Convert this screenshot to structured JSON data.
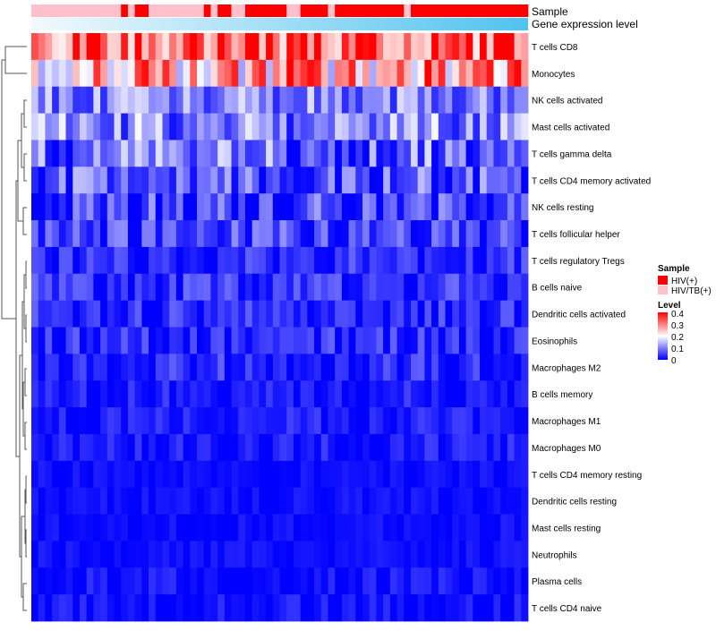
{
  "chart_data": {
    "type": "heatmap",
    "title": "",
    "annotation_labels": {
      "sample": "Sample",
      "expression": "Gene expression level"
    },
    "sample_groups": [
      "HIV/TB(+)",
      "HIV/TB(+)",
      "HIV/TB(+)",
      "HIV/TB(+)",
      "HIV/TB(+)",
      "HIV/TB(+)",
      "HIV/TB(+)",
      "HIV/TB(+)",
      "HIV/TB(+)",
      "HIV/TB(+)",
      "HIV/TB(+)",
      "HIV/TB(+)",
      "HIV/TB(+)",
      "HIV(+)",
      "HIV/TB(+)",
      "HIV(+)",
      "HIV(+)",
      "HIV/TB(+)",
      "HIV/TB(+)",
      "HIV/TB(+)",
      "HIV/TB(+)",
      "HIV/TB(+)",
      "HIV/TB(+)",
      "HIV/TB(+)",
      "HIV/TB(+)",
      "HIV(+)",
      "HIV/TB(+)",
      "HIV(+)",
      "HIV(+)",
      "HIV/TB(+)",
      "HIV/TB(+)",
      "HIV(+)",
      "HIV(+)",
      "HIV(+)",
      "HIV(+)",
      "HIV(+)",
      "HIV(+)",
      "HIV/TB(+)",
      "HIV/TB(+)",
      "HIV(+)",
      "HIV(+)",
      "HIV(+)",
      "HIV(+)",
      "HIV/TB(+)",
      "HIV(+)",
      "HIV(+)",
      "HIV(+)",
      "HIV(+)",
      "HIV(+)",
      "HIV(+)",
      "HIV(+)",
      "HIV(+)",
      "HIV(+)",
      "HIV(+)",
      "HIV/TB(+)",
      "HIV(+)",
      "HIV(+)",
      "HIV(+)",
      "HIV(+)",
      "HIV(+)",
      "HIV(+)",
      "HIV(+)",
      "HIV(+)",
      "HIV(+)",
      "HIV(+)",
      "HIV(+)",
      "HIV(+)",
      "HIV(+)",
      "HIV(+)",
      "HIV(+)",
      "HIV(+)",
      "HIV(+)"
    ],
    "rows": [
      "T cells CD8",
      "Monocytes",
      "NK cells activated",
      "Mast cells activated",
      "T cells gamma delta",
      "T cells CD4 memory activated",
      "NK cells resting",
      "T cells follicular helper",
      "T cells regulatory  Tregs",
      "B cells naive",
      "Dendritic cells activated",
      "Eosinophils",
      "Macrophages M2",
      "B cells memory",
      "Macrophages M1",
      "Macrophages M0",
      "T cells CD4 memory resting",
      "Dendritic cells resting",
      "Mast cells resting",
      "Neutrophils",
      "Plasma cells",
      "T cells CD4 naive"
    ],
    "row_means": [
      0.34,
      0.27,
      0.1,
      0.1,
      0.08,
      0.07,
      0.05,
      0.05,
      0.03,
      0.04,
      0.03,
      0.03,
      0.03,
      0.02,
      0.02,
      0.02,
      0.01,
      0.01,
      0.01,
      0.01,
      0.01,
      0.01
    ],
    "row_spread": [
      0.08,
      0.09,
      0.05,
      0.06,
      0.06,
      0.05,
      0.05,
      0.04,
      0.03,
      0.03,
      0.03,
      0.03,
      0.03,
      0.02,
      0.02,
      0.02,
      0.01,
      0.01,
      0.01,
      0.01,
      0.02,
      0.02
    ],
    "value_range": [
      0,
      0.4
    ],
    "colorscale": [
      "#0000ff",
      "#ffffff",
      "#ff0000"
    ],
    "legend": {
      "sample_title": "Sample",
      "sample_entries": [
        {
          "label": "HIV(+)",
          "color": "#ff0000"
        },
        {
          "label": "HIV/TB(+)",
          "color": "#ffc0cb"
        }
      ],
      "level_title": "Level",
      "level_ticks": [
        "0.4",
        "0.3",
        "0.2",
        "0.1",
        "0"
      ]
    },
    "colors": {
      "hiv": "#ff0000",
      "hivtb": "#ffc0cb",
      "expression_left": "#f0f8ff",
      "expression_right": "#56c8f0"
    }
  }
}
